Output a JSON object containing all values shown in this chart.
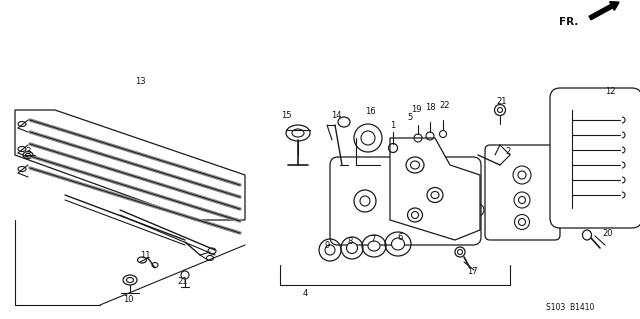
{
  "bg_color": "#ffffff",
  "lc": "#1a1a1a",
  "diagram_code": "S103  B1410",
  "fig_width": 6.4,
  "fig_height": 3.19,
  "dpi": 100
}
